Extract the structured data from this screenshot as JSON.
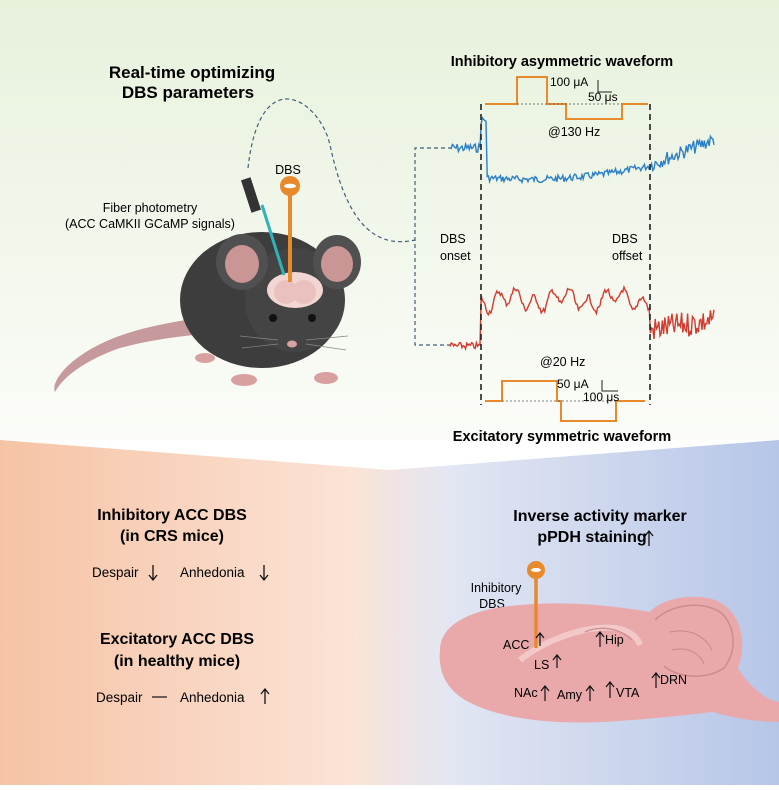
{
  "top": {
    "title_line1": "Real-time optimizing",
    "title_line2": "DBS parameters",
    "fiber_line1": "Fiber photometry",
    "fiber_line2": "(ACC CaMKII GCaMP signals)",
    "dbs_label": "DBS"
  },
  "waveform_top": {
    "title": "Inhibitory asymmetric waveform",
    "amp": "100 μA",
    "dur": "50 μs",
    "freq": "@130 Hz"
  },
  "waveform_bottom": {
    "title": "Excitatory symmetric waveform",
    "amp": "50 μA",
    "dur": "100 μs",
    "freq": "@20 Hz"
  },
  "markers": {
    "onset_line1": "DBS",
    "onset_line2": "onset",
    "offset_line1": "DBS",
    "offset_line2": "offset"
  },
  "bottom_left": {
    "inhib_title1": "Inhibitory ACC DBS",
    "inhib_title2": "(in CRS mice)",
    "despair": "Despair",
    "anhedonia": "Anhedonia",
    "excit_title1": "Excitatory ACC DBS",
    "excit_title2": "(in healthy mice)"
  },
  "bottom_right": {
    "title1": "Inverse activity marker",
    "title2": "pPDH staining",
    "dbs_line1": "Inhibitory",
    "dbs_line2": "DBS",
    "regions": [
      "ACC",
      "Hip",
      "LS",
      "DRN",
      "NAc",
      "Amy",
      "VTA"
    ]
  },
  "colors": {
    "blue_trace": "#2b7fc6",
    "red_trace": "#d23b30",
    "orange": "#e8892c",
    "mouse": "#3d3d3d",
    "brain": "#e9a9ab"
  }
}
